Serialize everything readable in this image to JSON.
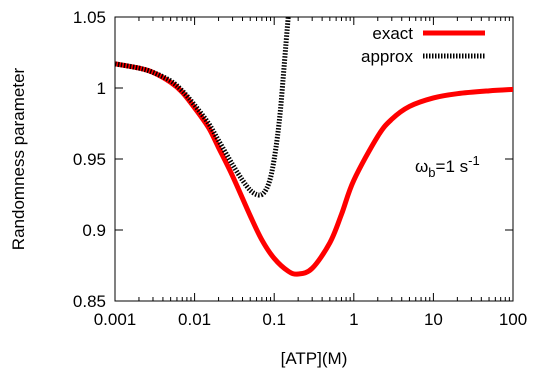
{
  "chart_data": {
    "type": "line",
    "xlabel": "[ATP](M)",
    "ylabel": "Randomness parameter",
    "xscale": "log",
    "xlim": [
      0.001,
      100
    ],
    "ylim": [
      0.85,
      1.05
    ],
    "xticks": [
      {
        "value": 0.001,
        "label": "0.001"
      },
      {
        "value": 0.01,
        "label": "0.01"
      },
      {
        "value": 0.1,
        "label": "0.1"
      },
      {
        "value": 1,
        "label": "1"
      },
      {
        "value": 10,
        "label": "10"
      },
      {
        "value": 100,
        "label": "100"
      }
    ],
    "yticks": [
      {
        "value": 0.85,
        "label": "0.85"
      },
      {
        "value": 0.9,
        "label": "0.9"
      },
      {
        "value": 0.95,
        "label": "0.95"
      },
      {
        "value": 1.0,
        "label": "1"
      },
      {
        "value": 1.05,
        "label": "1.05"
      }
    ],
    "legend_position": "top-right",
    "annotation": {
      "base": "ω",
      "sub": "b",
      "mid": "=1 s",
      "sup": "-1"
    },
    "series": [
      {
        "name": "exact",
        "color": "#ff0000",
        "style": "solid-thick",
        "x": [
          0.001,
          0.002,
          0.003,
          0.005,
          0.007,
          0.01,
          0.015,
          0.02,
          0.03,
          0.05,
          0.07,
          0.1,
          0.15,
          0.2,
          0.3,
          0.5,
          0.7,
          1,
          2,
          3,
          5,
          10,
          20,
          50,
          100
        ],
        "y": [
          1.017,
          1.014,
          1.011,
          1.004,
          0.997,
          0.986,
          0.972,
          0.958,
          0.938,
          0.91,
          0.893,
          0.88,
          0.871,
          0.869,
          0.873,
          0.891,
          0.911,
          0.935,
          0.966,
          0.978,
          0.987,
          0.993,
          0.996,
          0.998,
          0.999
        ]
      },
      {
        "name": "approx",
        "color": "#000000",
        "style": "dotted",
        "x": [
          0.001,
          0.002,
          0.003,
          0.005,
          0.007,
          0.01,
          0.015,
          0.02,
          0.03,
          0.04,
          0.05,
          0.06,
          0.07,
          0.08,
          0.09,
          0.1,
          0.11,
          0.12,
          0.13,
          0.14,
          0.15
        ],
        "y": [
          1.017,
          1.014,
          1.011,
          1.005,
          0.998,
          0.988,
          0.975,
          0.963,
          0.946,
          0.935,
          0.928,
          0.925,
          0.925,
          0.929,
          0.937,
          0.95,
          0.966,
          0.985,
          1.008,
          1.03,
          1.05
        ]
      }
    ]
  }
}
